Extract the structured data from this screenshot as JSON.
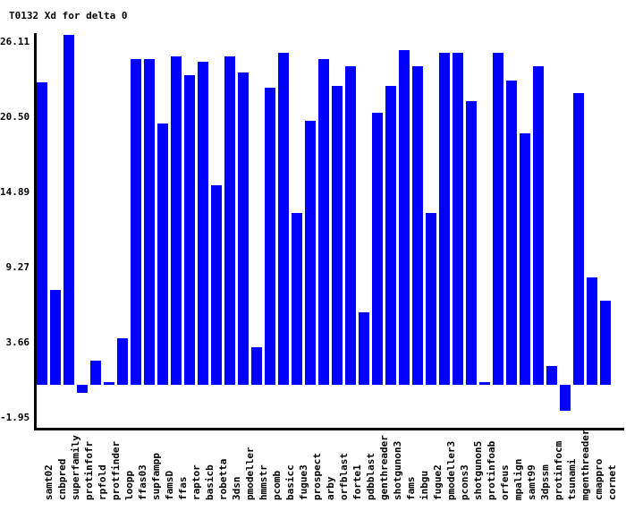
{
  "chart_data": {
    "type": "bar",
    "title": "T0132 Xd for delta 0",
    "xlabel": "",
    "ylabel": "",
    "categories": [
      "samt02",
      "cnbpred",
      "superfamily",
      "protinfofr",
      "rpfold",
      "protfinder",
      "loopp",
      "ffas03",
      "supfampp",
      "famsD",
      "ffas",
      "raptor",
      "basicb",
      "robetta",
      "3dsn",
      "pmodeller",
      "hmmstr",
      "pcomb",
      "basicc",
      "fugue3",
      "prospect",
      "arby",
      "orfblast",
      "forte1",
      "pdbblast",
      "genthreader",
      "shotgunon3",
      "fams",
      "inbgu",
      "fugue2",
      "pmodeller3",
      "pcons3",
      "shotgunon5",
      "protinfoab",
      "orfeus",
      "mpalign",
      "samt99",
      "3dpssm",
      "protinfocm",
      "tsunami",
      "mgenthreader",
      "cmappro",
      "cornet"
    ],
    "values": [
      22.6,
      7.1,
      26.11,
      -0.6,
      1.8,
      0.2,
      3.5,
      24.3,
      24.3,
      19.5,
      24.5,
      23.1,
      24.1,
      14.9,
      24.5,
      23.3,
      2.8,
      22.2,
      24.8,
      12.8,
      19.7,
      24.3,
      22.3,
      23.8,
      5.4,
      20.3,
      22.3,
      25.0,
      23.8,
      12.8,
      24.8,
      24.8,
      21.2,
      0.2,
      24.8,
      22.7,
      18.8,
      23.8,
      1.4,
      -1.95,
      21.8,
      8.0,
      6.3
    ],
    "y_tick_labels": [
      "26.11",
      "20.50",
      "14.89",
      "9.27",
      "3.66",
      "-1.95"
    ],
    "y_tick_values": [
      26.11,
      20.5,
      14.89,
      9.27,
      3.66,
      -1.95
    ],
    "ylim": [
      -1.95,
      26.11
    ],
    "grid": false,
    "legend": "none",
    "bar_color": "#0000ff",
    "axis_color": "#000000",
    "background_color": "#ffffff",
    "text_color": "#000000"
  }
}
